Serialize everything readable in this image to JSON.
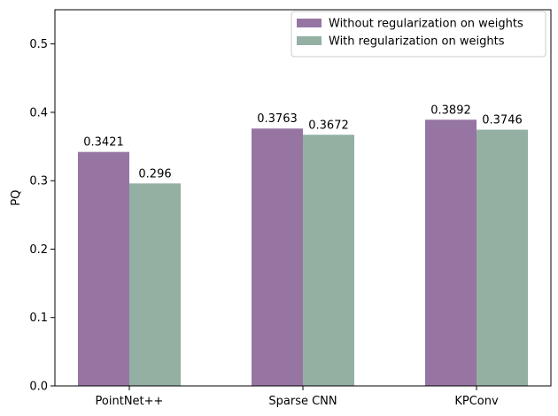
{
  "chart_data": {
    "type": "bar",
    "categories": [
      "PointNet++",
      "Sparse CNN",
      "KPConv"
    ],
    "series": [
      {
        "name": "Without regularization on weights",
        "values": [
          0.3421,
          0.3763,
          0.3892
        ],
        "labels": [
          "0.3421",
          "0.3763",
          "0.3892"
        ],
        "color": "#9675a3"
      },
      {
        "name": "With regularization on weights",
        "values": [
          0.296,
          0.3672,
          0.3746
        ],
        "labels": [
          "0.296",
          "0.3672",
          "0.3746"
        ],
        "color": "#93b0a3"
      }
    ],
    "title": "",
    "xlabel": "",
    "ylabel": "PQ",
    "ylim": [
      0,
      0.55
    ],
    "yticks": [
      0.0,
      0.1,
      0.2,
      0.3,
      0.4,
      0.5
    ],
    "ytick_labels": [
      "0.0",
      "0.1",
      "0.2",
      "0.3",
      "0.4",
      "0.5"
    ],
    "grid": false,
    "legend_position": "top-right"
  }
}
